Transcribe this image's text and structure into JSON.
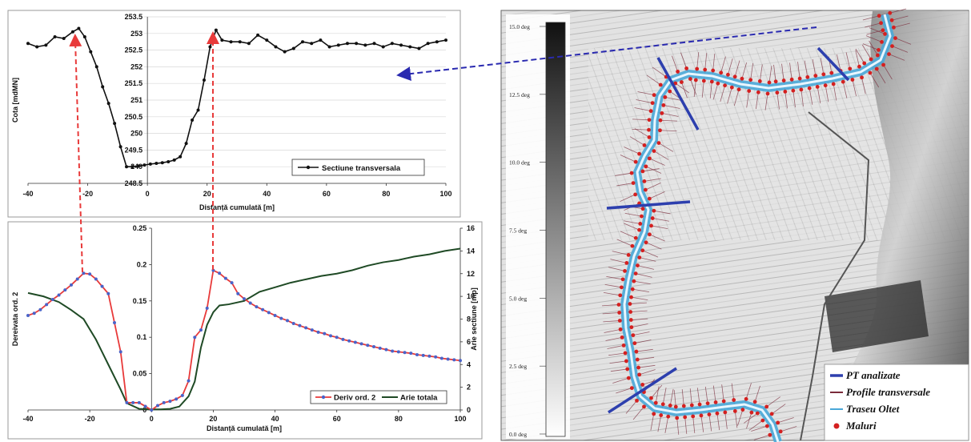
{
  "chart_data": [
    {
      "type": "line",
      "ylabel": "Cota [mdMN]",
      "xlabel": "Distanță cumulată [m]",
      "xlim": [
        -40,
        100
      ],
      "ylim": [
        248.5,
        253.5
      ],
      "xticks": [
        "-40",
        "-20",
        "0",
        "20",
        "40",
        "60",
        "80",
        "100"
      ],
      "yticks": [
        "248.5",
        "249",
        "249.5",
        "250",
        "250.5",
        "251",
        "251.5",
        "252",
        "252.5",
        "253",
        "253.5"
      ],
      "grid": "horizontal",
      "legend_position": "bottom-right",
      "series": [
        {
          "name": "Sectiune transversala",
          "color": "#111111",
          "x": [
            -40,
            -37,
            -34,
            -31,
            -28,
            -25,
            -23,
            -21,
            -19,
            -17,
            -15,
            -13,
            -11,
            -9,
            -7,
            -5,
            -3,
            -1,
            1,
            3,
            5,
            7,
            9,
            11,
            13,
            15,
            17,
            19,
            21,
            23,
            25,
            28,
            31,
            34,
            37,
            40,
            43,
            46,
            49,
            52,
            55,
            58,
            61,
            64,
            67,
            70,
            73,
            76,
            79,
            82,
            85,
            88,
            91,
            94,
            97,
            100
          ],
          "y": [
            252.7,
            252.6,
            252.65,
            252.9,
            252.85,
            253.05,
            253.15,
            252.9,
            252.45,
            252.0,
            251.4,
            250.9,
            250.3,
            249.6,
            249.0,
            249.0,
            249.02,
            249.05,
            249.08,
            249.1,
            249.12,
            249.15,
            249.2,
            249.3,
            249.7,
            250.4,
            250.7,
            251.6,
            252.6,
            253.1,
            252.8,
            252.75,
            252.75,
            252.7,
            252.95,
            252.8,
            252.6,
            252.45,
            252.55,
            252.75,
            252.7,
            252.8,
            252.6,
            252.65,
            252.7,
            252.7,
            252.65,
            252.7,
            252.6,
            252.7,
            252.65,
            252.6,
            252.55,
            252.7,
            252.75,
            252.8
          ]
        }
      ]
    },
    {
      "type": "line",
      "ylabel": "Dereivata ord. 2",
      "ylabel2": "Arie sectiune [mp]",
      "xlabel": "Distanță cumulată [m]",
      "xlim": [
        -40,
        100
      ],
      "ylim": [
        0,
        0.25
      ],
      "ylim2": [
        0,
        16
      ],
      "xticks": [
        "-40",
        "-20",
        "0",
        "20",
        "40",
        "60",
        "80",
        "100"
      ],
      "yticks": [
        "0",
        "0.05",
        "0.1",
        "0.15",
        "0.2",
        "0.25"
      ],
      "yticks2": [
        "0",
        "2",
        "4",
        "6",
        "8",
        "10",
        "12",
        "14",
        "16"
      ],
      "legend_position": "bottom-right",
      "series": [
        {
          "name": "Deriv ord. 2",
          "color": "#e83a3a",
          "marker_color": "#4a63c8",
          "axis": "left",
          "x": [
            -40,
            -38,
            -36,
            -34,
            -32,
            -30,
            -28,
            -26,
            -24,
            -22,
            -20,
            -18,
            -16,
            -14,
            -12,
            -10,
            -8,
            -6,
            -4,
            -2,
            0,
            2,
            4,
            6,
            8,
            10,
            12,
            14,
            16,
            18,
            20,
            22,
            24,
            26,
            28,
            30,
            32,
            34,
            36,
            38,
            40,
            42,
            44,
            46,
            48,
            50,
            52,
            54,
            56,
            58,
            60,
            62,
            64,
            66,
            68,
            70,
            72,
            74,
            76,
            78,
            80,
            82,
            84,
            86,
            88,
            90,
            92,
            94,
            96,
            98,
            100
          ],
          "y": [
            0.13,
            0.133,
            0.138,
            0.145,
            0.152,
            0.158,
            0.165,
            0.172,
            0.18,
            0.188,
            0.187,
            0.18,
            0.17,
            0.16,
            0.12,
            0.08,
            0.01,
            0.01,
            0.01,
            0.005,
            0.0,
            0.006,
            0.01,
            0.012,
            0.015,
            0.02,
            0.04,
            0.1,
            0.11,
            0.14,
            0.192,
            0.188,
            0.181,
            0.175,
            0.16,
            0.153,
            0.147,
            0.142,
            0.138,
            0.134,
            0.13,
            0.126,
            0.123,
            0.119,
            0.116,
            0.113,
            0.11,
            0.107,
            0.105,
            0.102,
            0.1,
            0.097,
            0.095,
            0.093,
            0.091,
            0.089,
            0.087,
            0.085,
            0.083,
            0.081,
            0.08,
            0.079,
            0.078,
            0.076,
            0.075,
            0.074,
            0.073,
            0.071,
            0.07,
            0.069,
            0.068
          ]
        },
        {
          "name": "Arie totala",
          "color": "#1f4a25",
          "axis": "right",
          "x": [
            -40,
            -35,
            -30,
            -26,
            -22,
            -18,
            -14,
            -10,
            -8,
            -4,
            0,
            3,
            6,
            9,
            12,
            14,
            16,
            18,
            20,
            22,
            25,
            30,
            35,
            40,
            45,
            50,
            55,
            60,
            65,
            70,
            75,
            80,
            85,
            90,
            95,
            100
          ],
          "y": [
            10.3,
            10.0,
            9.5,
            8.8,
            8.0,
            6.2,
            4.0,
            1.8,
            0.6,
            0.1,
            0.05,
            0.05,
            0.1,
            0.3,
            1.2,
            2.5,
            5.5,
            7.5,
            8.6,
            9.2,
            9.3,
            9.6,
            10.4,
            10.8,
            11.2,
            11.5,
            11.8,
            12.0,
            12.3,
            12.7,
            13.0,
            13.2,
            13.5,
            13.7,
            14.0,
            14.2
          ]
        }
      ]
    }
  ],
  "map": {
    "colorbar_ticks": [
      "15.0 deg",
      "12.5 deg",
      "10.0 deg",
      "7.5 deg",
      "5.0 deg",
      "2.5 deg",
      "0.0 deg"
    ],
    "legend": [
      {
        "label": "PT analizate",
        "color": "#2d3fae",
        "symbol": "line"
      },
      {
        "label": "Profile transversale",
        "color": "#7a2a3a",
        "symbol": "line"
      },
      {
        "label": "Traseu Oltet",
        "color": "#4aa8d8",
        "symbol": "line"
      },
      {
        "label": "Maluri",
        "color": "#d42020",
        "symbol": "dot"
      }
    ]
  },
  "colors": {
    "pointer_red": "#e83a3a",
    "pointer_blue": "#2a2ab0"
  }
}
